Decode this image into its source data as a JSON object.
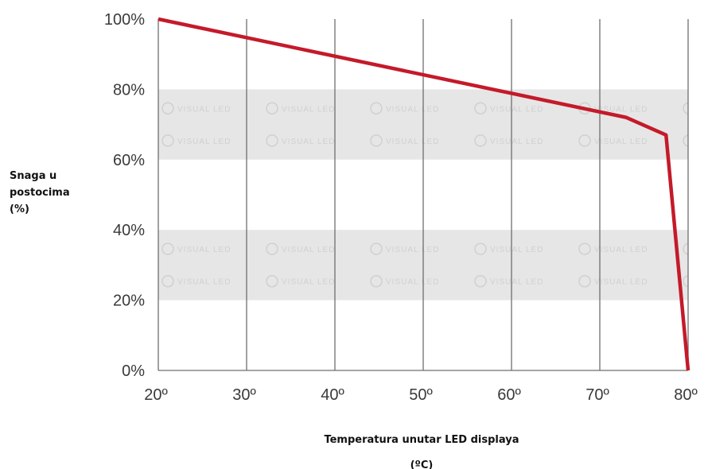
{
  "chart_data": {
    "type": "line",
    "x": [
      20,
      73,
      77.5,
      80
    ],
    "series": [
      {
        "values": [
          100,
          72,
          67,
          0
        ]
      }
    ],
    "xlim": [
      20,
      80
    ],
    "ylim": [
      0,
      100
    ],
    "xticks": [
      20,
      30,
      40,
      50,
      60,
      70,
      80
    ],
    "yticks": [
      0,
      20,
      40,
      60,
      80,
      100
    ],
    "xtick_labels": [
      "20º",
      "30º",
      "40º",
      "50º",
      "60º",
      "70º",
      "80º"
    ],
    "ytick_labels": [
      "0%",
      "20%",
      "40%",
      "60%",
      "80%",
      "100%"
    ],
    "ylabel_lines": [
      "Snaga u",
      "postocima",
      "(%)"
    ],
    "xlabel_lines": [
      "Temperatura unutar LED displaya",
      "(ºC)"
    ],
    "watermark_text": "VISUAL LED",
    "shaded_bands": [
      [
        20,
        40
      ],
      [
        60,
        80
      ]
    ],
    "grid": "vertical",
    "line_color": "#c41a2a",
    "band_color": "#e6e6e6",
    "grid_color": "#6f6f6f"
  }
}
